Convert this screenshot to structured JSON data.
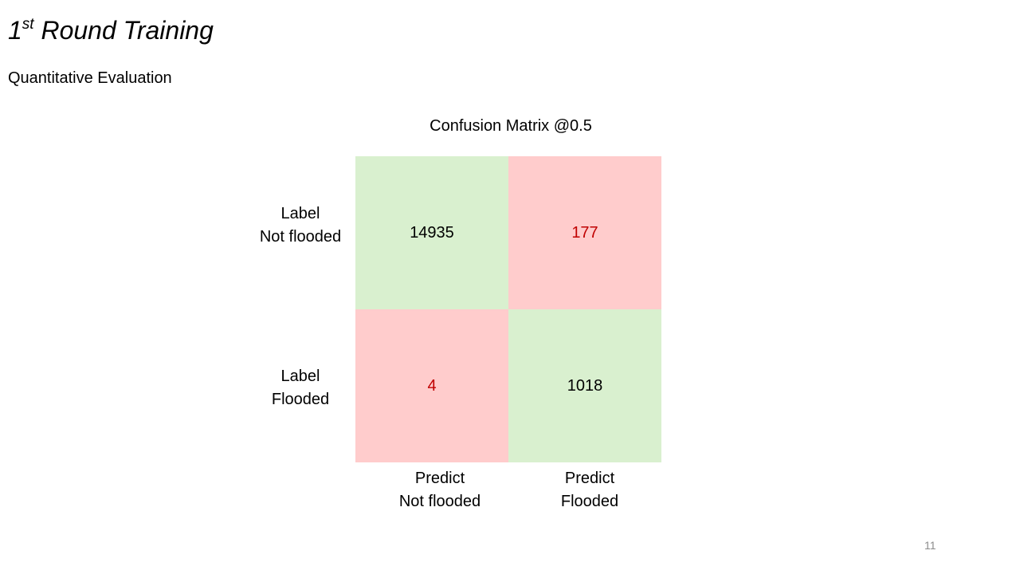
{
  "slide": {
    "title_main": "1",
    "title_sup": "st",
    "title_rest": " Round Training",
    "subtitle": "Quantitative Evaluation",
    "page_number": "11"
  },
  "matrix": {
    "title": "Confusion Matrix @0.5",
    "row_labels": [
      {
        "line1": "Label",
        "line2": "Not flooded"
      },
      {
        "line1": "Label",
        "line2": "Flooded"
      }
    ],
    "col_labels": [
      {
        "line1": "Predict",
        "line2": "Not flooded"
      },
      {
        "line1": "Predict",
        "line2": "Flooded"
      }
    ],
    "cells": [
      [
        "14935",
        "177"
      ],
      [
        "4",
        "1018"
      ]
    ]
  },
  "colors": {
    "correct_bg": "#d9f0cf",
    "wrong_bg": "#ffcccc",
    "wrong_text": "#c00000",
    "page_number": "#8c8c8c"
  }
}
